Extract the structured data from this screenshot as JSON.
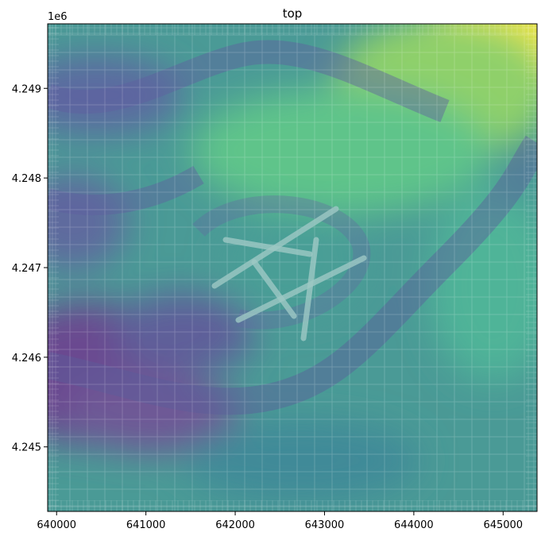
{
  "chart_data": {
    "type": "heatmap",
    "title": "top",
    "xlabel": "",
    "ylabel": "",
    "x_ticks": [
      "640000",
      "641000",
      "642000",
      "643000",
      "644000",
      "645000"
    ],
    "x_tick_values": [
      640000,
      641000,
      642000,
      643000,
      644000,
      645000
    ],
    "y_ticks": [
      "4.245",
      "4.246",
      "4.247",
      "4.248",
      "4.249"
    ],
    "y_tick_values": [
      4.245,
      4.246,
      4.247,
      4.248,
      4.249
    ],
    "y_offset_label": "1e6",
    "xlim": [
      639900,
      645380
    ],
    "ylim": [
      4.24428,
      4.24972
    ],
    "colormap": "viridis",
    "grid": false,
    "legend": "none"
  }
}
